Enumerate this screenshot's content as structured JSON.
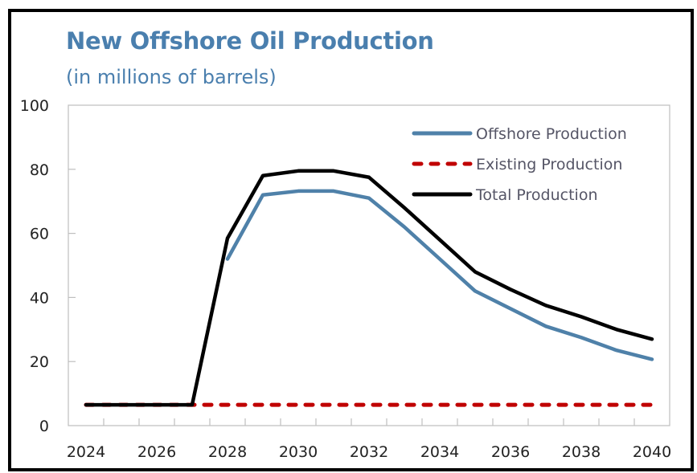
{
  "chart_data": {
    "type": "line",
    "title": "New Offshore Oil Production",
    "subtitle": "(in millions of barrels)",
    "xlabel": "",
    "ylabel": "",
    "ylim": [
      0,
      100
    ],
    "yticks": [
      0,
      20,
      40,
      60,
      80,
      100
    ],
    "x": [
      "2024",
      "2025",
      "2026",
      "2027",
      "2028",
      "2029",
      "2030",
      "2031",
      "2032",
      "2033",
      "2034",
      "2035",
      "2036",
      "2037",
      "2038",
      "2039",
      "2040"
    ],
    "xtick_labels": [
      "2024",
      "2026",
      "2028",
      "2030",
      "2032",
      "2034",
      "2036",
      "2038",
      "2040"
    ],
    "grid": false,
    "legend_position": "top-right",
    "series": [
      {
        "name": "Offshore Production",
        "color": "#4f81a9",
        "style": "solid",
        "values": [
          null,
          null,
          null,
          null,
          52,
          72,
          73.2,
          73.2,
          71,
          62,
          52,
          42,
          36.5,
          31,
          27.5,
          23.5,
          20.7
        ]
      },
      {
        "name": "Existing Production",
        "color": "#c00000",
        "style": "dashed",
        "values": [
          6.5,
          6.5,
          6.5,
          6.5,
          6.5,
          6.5,
          6.5,
          6.5,
          6.5,
          6.5,
          6.5,
          6.5,
          6.5,
          6.5,
          6.5,
          6.5,
          6.5
        ]
      },
      {
        "name": "Total Production",
        "color": "#000000",
        "style": "solid",
        "values": [
          6.5,
          6.5,
          6.5,
          6.5,
          58.5,
          78,
          79.5,
          79.5,
          77.5,
          68,
          58,
          48,
          42.5,
          37.5,
          34,
          30,
          27
        ]
      }
    ]
  }
}
